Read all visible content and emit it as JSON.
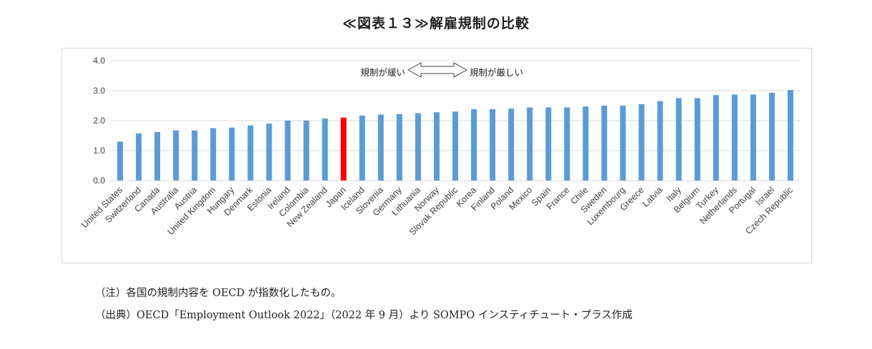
{
  "title": "≪図表１３≫解雇規制の比較",
  "notes": {
    "note1": "（注）各国の規制内容を OECD が指数化したもの。",
    "note2": "（出典）OECD「Employment Outlook 2022」（2022 年 9 月）より SOMPO インスティチュート・プラス作成"
  },
  "annotation": {
    "left_label": "規制が緩い",
    "right_label": "規制が厳しい"
  },
  "colors": {
    "bar": "#5b9bd5",
    "highlight": "#ff0000",
    "grid": "#d9d9d9"
  },
  "chart_data": {
    "type": "bar",
    "title": "≪図表１３≫解雇規制の比較",
    "xlabel": "",
    "ylabel": "",
    "ylim": [
      0,
      4
    ],
    "yticks": [
      "0.0",
      "1.0",
      "2.0",
      "3.0",
      "4.0"
    ],
    "grid": true,
    "highlight_category": "Japan",
    "categories": [
      "United States",
      "Switzerland",
      "Canada",
      "Australia",
      "Austria",
      "United Kingdom",
      "Hungary",
      "Denmark",
      "Estonia",
      "Ireland",
      "Colombia",
      "New Zealand",
      "Japan",
      "Iceland",
      "Slovenia",
      "Germany",
      "Lithuania",
      "Norway",
      "Slovak Republic",
      "Korea",
      "Finland",
      "Poland",
      "Mexico",
      "Spain",
      "France",
      "Chile",
      "Sweden",
      "Luxembourg",
      "Greece",
      "Latvia",
      "Italy",
      "Belgium",
      "Turkey",
      "Netherlands",
      "Portugal",
      "Israel",
      "Czech Republic"
    ],
    "values": [
      1.3,
      1.57,
      1.62,
      1.67,
      1.67,
      1.75,
      1.77,
      1.84,
      1.9,
      2.0,
      2.0,
      2.07,
      2.1,
      2.17,
      2.2,
      2.22,
      2.25,
      2.28,
      2.3,
      2.38,
      2.38,
      2.4,
      2.44,
      2.44,
      2.44,
      2.47,
      2.5,
      2.5,
      2.55,
      2.65,
      2.75,
      2.75,
      2.85,
      2.87,
      2.87,
      2.93,
      3.02
    ]
  }
}
